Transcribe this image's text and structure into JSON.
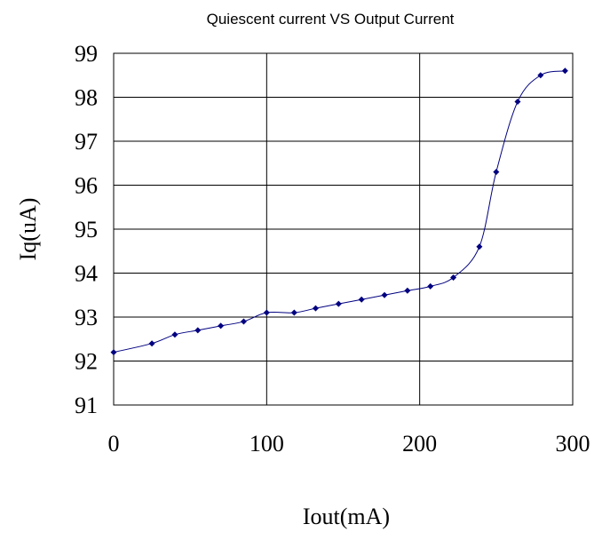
{
  "chart_data": {
    "type": "line",
    "title": "Quiescent current VS Output Current",
    "x_label": "Iout(mA)",
    "y_label": "Iq(uA)",
    "x": [
      0,
      25,
      40,
      55,
      70,
      85,
      100,
      118,
      132,
      147,
      162,
      177,
      192,
      207,
      222,
      239,
      250,
      264,
      279,
      295
    ],
    "series": [
      {
        "name": "Iq",
        "color": "#000080",
        "values": [
          92.2,
          92.4,
          92.6,
          92.7,
          92.8,
          92.9,
          93.1,
          93.1,
          93.2,
          93.3,
          93.4,
          93.5,
          93.6,
          93.7,
          93.9,
          94.6,
          96.3,
          97.9,
          98.5,
          98.6
        ]
      }
    ],
    "xlim": [
      0,
      300
    ],
    "xticks": [
      0,
      100,
      200,
      300
    ],
    "ylim": [
      91,
      99
    ],
    "yticks": [
      91,
      92,
      93,
      94,
      95,
      96,
      97,
      98,
      99
    ],
    "grid": true
  }
}
